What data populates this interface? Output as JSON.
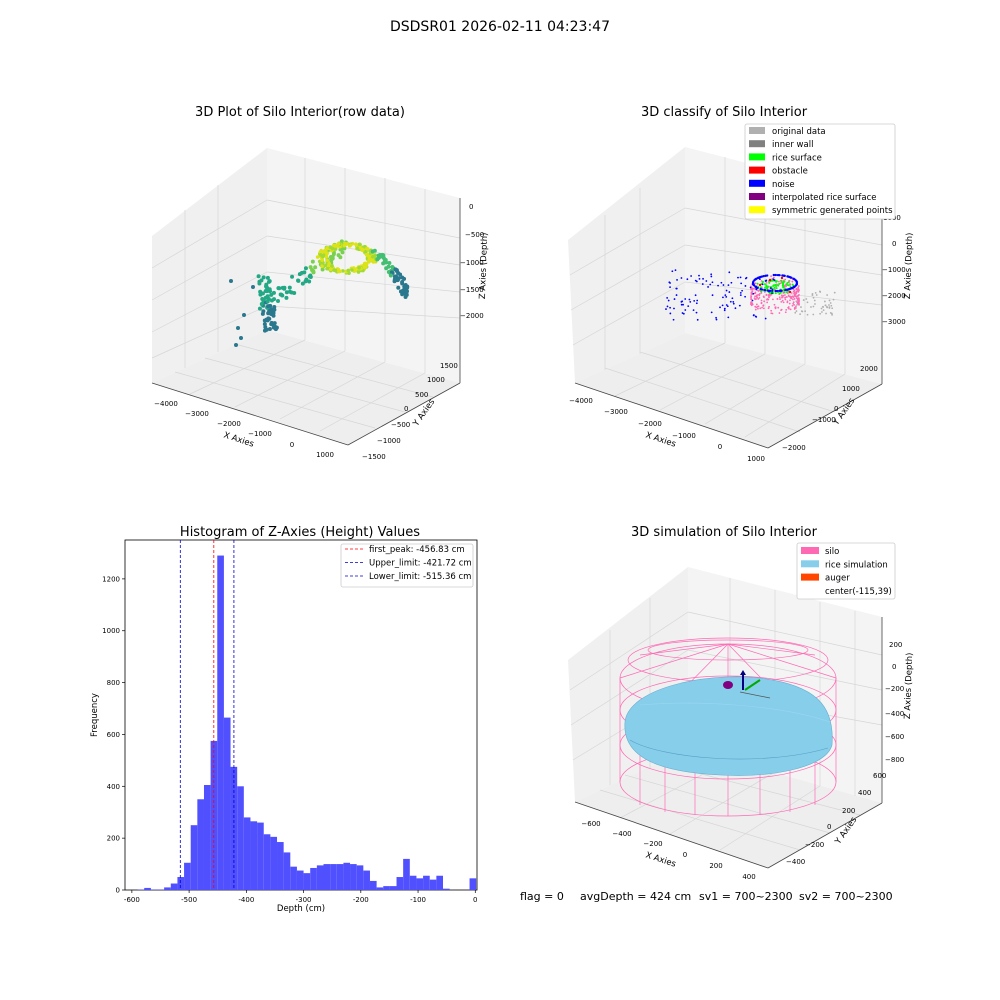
{
  "suptitle": "DSDSR01 2026-02-11 04:23:47",
  "footer": {
    "flag": "flag = 0",
    "avg_depth": "avgDepth = 424 cm",
    "sv1": "sv1 = 700~2300",
    "sv2": "sv2 = 700~2300"
  },
  "colors": {
    "hist_bar": "#5050ff",
    "first_peak_line": "#ff0000",
    "limit_line": "#0000cc",
    "viridis_low": "#2a788e",
    "viridis_mid": "#22a884",
    "viridis_high": "#dde318",
    "silo": "#ff69b4",
    "rice_simulation": "#87ceeb",
    "auger": "#ff4500"
  },
  "panel_3d_raw": {
    "title": "3D Plot of Silo Interior(row data)",
    "xlabel": "X Axies",
    "ylabel": "Y Axies",
    "zlabel": "Z Axies (Depth)",
    "x_ticks": [
      "−4000",
      "−3000",
      "−2000",
      "−1000",
      "0",
      "1000"
    ],
    "y_ticks": [
      "−1500",
      "−1000",
      "−500",
      "0",
      "500",
      "1000",
      "1500"
    ],
    "z_ticks": [
      "0",
      "−500",
      "−1000",
      "−1500",
      "−2000"
    ]
  },
  "panel_3d_classify": {
    "title": "3D classify of Silo Interior",
    "xlabel": "X Axies",
    "ylabel": "Y Axies",
    "zlabel": "Z Axies (Depth)",
    "x_ticks": [
      "−4000",
      "−3000",
      "−2000",
      "−1000",
      "0",
      "1000"
    ],
    "y_ticks": [
      "−2000",
      "−1000",
      "0",
      "1000",
      "2000"
    ],
    "z_ticks": [
      "1000",
      "0",
      "−1000",
      "−2000",
      "−3000"
    ],
    "legend": [
      {
        "label": "original data",
        "color": "#b0b0b0"
      },
      {
        "label": "inner wall",
        "color": "#808080"
      },
      {
        "label": "rice surface",
        "color": "#00ff00"
      },
      {
        "label": "obstacle",
        "color": "#ff0000"
      },
      {
        "label": "noise",
        "color": "#0000ff"
      },
      {
        "label": "interpolated rice surface",
        "color": "#800080"
      },
      {
        "label": "symmetric generated points",
        "color": "#ffff00"
      }
    ]
  },
  "panel_3d_sim": {
    "title": "3D simulation of Silo Interior",
    "xlabel": "X Axies",
    "ylabel": "Y Axies",
    "zlabel": "Z Axies (Depth)",
    "x_ticks": [
      "−600",
      "−400",
      "−200",
      "0",
      "200",
      "400"
    ],
    "y_ticks": [
      "−400",
      "−200",
      "0",
      "200",
      "400",
      "600"
    ],
    "z_ticks": [
      "200",
      "0",
      "−200",
      "−400",
      "−600",
      "−800"
    ],
    "legend": [
      {
        "label": "silo",
        "color": "#ff69b4"
      },
      {
        "label": "rice simulation",
        "color": "#87ceeb"
      },
      {
        "label": "auger",
        "color": "#ff4500"
      },
      {
        "label": "center(-115,39)",
        "color": ""
      }
    ]
  },
  "chart_data": [
    {
      "type": "bar",
      "title": "Histogram of Z-Axies (Height) Values",
      "xlabel": "Depth (cm)",
      "ylabel": "Frequency",
      "xlim": [
        -612,
        3
      ],
      "ylim": [
        0,
        1350
      ],
      "x_ticks": [
        -600,
        -500,
        -400,
        -300,
        -200,
        -100,
        0
      ],
      "y_ticks": [
        0,
        200,
        400,
        600,
        800,
        1000,
        1200
      ],
      "bin_width": 11.6,
      "bin_starts": [
        -590.0,
        -578.4,
        -566.8,
        -555.2,
        -543.6,
        -532.0,
        -520.4,
        -508.8,
        -497.2,
        -485.6,
        -474.0,
        -462.4,
        -450.8,
        -439.2,
        -427.6,
        -416.0,
        -404.4,
        -392.8,
        -381.2,
        -369.6,
        -358.0,
        -346.4,
        -334.8,
        -323.2,
        -311.6,
        -300.0,
        -288.4,
        -276.8,
        -265.2,
        -253.6,
        -242.0,
        -230.4,
        -218.8,
        -207.2,
        -195.6,
        -184.0,
        -172.4,
        -160.8,
        -149.2,
        -137.6,
        -126.0,
        -114.4,
        -102.8,
        -91.2,
        -79.6,
        -68.0,
        -56.4,
        -44.8,
        -33.2,
        -21.6,
        -10.0
      ],
      "values": [
        2,
        8,
        2,
        2,
        10,
        25,
        50,
        105,
        250,
        350,
        405,
        575,
        1290,
        665,
        475,
        400,
        280,
        265,
        260,
        215,
        205,
        185,
        145,
        90,
        75,
        65,
        85,
        95,
        100,
        100,
        100,
        105,
        100,
        95,
        75,
        35,
        10,
        15,
        15,
        50,
        120,
        55,
        45,
        55,
        40,
        55,
        5,
        0,
        0,
        0,
        45
      ],
      "lines": [
        {
          "name": "first_peak: -456.83 cm",
          "x": -456.83,
          "color": "#ff0000"
        },
        {
          "name": "Upper_limit: -421.72 cm",
          "x": -421.72,
          "color": "#0000cc"
        },
        {
          "name": "Lower_limit: -515.36 cm",
          "x": -515.36,
          "color": "#0000cc"
        }
      ],
      "legend_position": "upper right"
    }
  ]
}
